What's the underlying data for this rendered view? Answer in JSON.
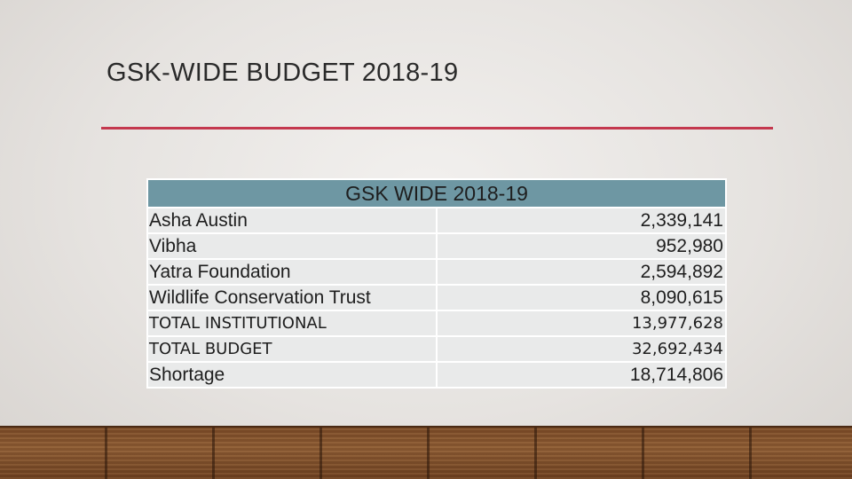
{
  "slide": {
    "title": "GSK-WIDE BUDGET 2018-19"
  },
  "table": {
    "header": "GSK WIDE 2018-19",
    "rows": [
      {
        "label": "Asha Austin",
        "value": "2,339,141"
      },
      {
        "label": "Vibha",
        "value": "952,980"
      },
      {
        "label": "Yatra Foundation",
        "value": "2,594,892"
      },
      {
        "label": "Wildlife Conservation Trust",
        "value": "8,090,615"
      },
      {
        "label": "TOTAL INSTITUTIONAL",
        "value": "13,977,628"
      },
      {
        "label": "TOTAL BUDGET",
        "value": "32,692,434"
      },
      {
        "label": "Shortage",
        "value": "18,714,806"
      }
    ]
  },
  "colors": {
    "accent_rule": "#c4384e",
    "header_fill": "#6e97a3",
    "cell_fill": "#e9eaea"
  }
}
